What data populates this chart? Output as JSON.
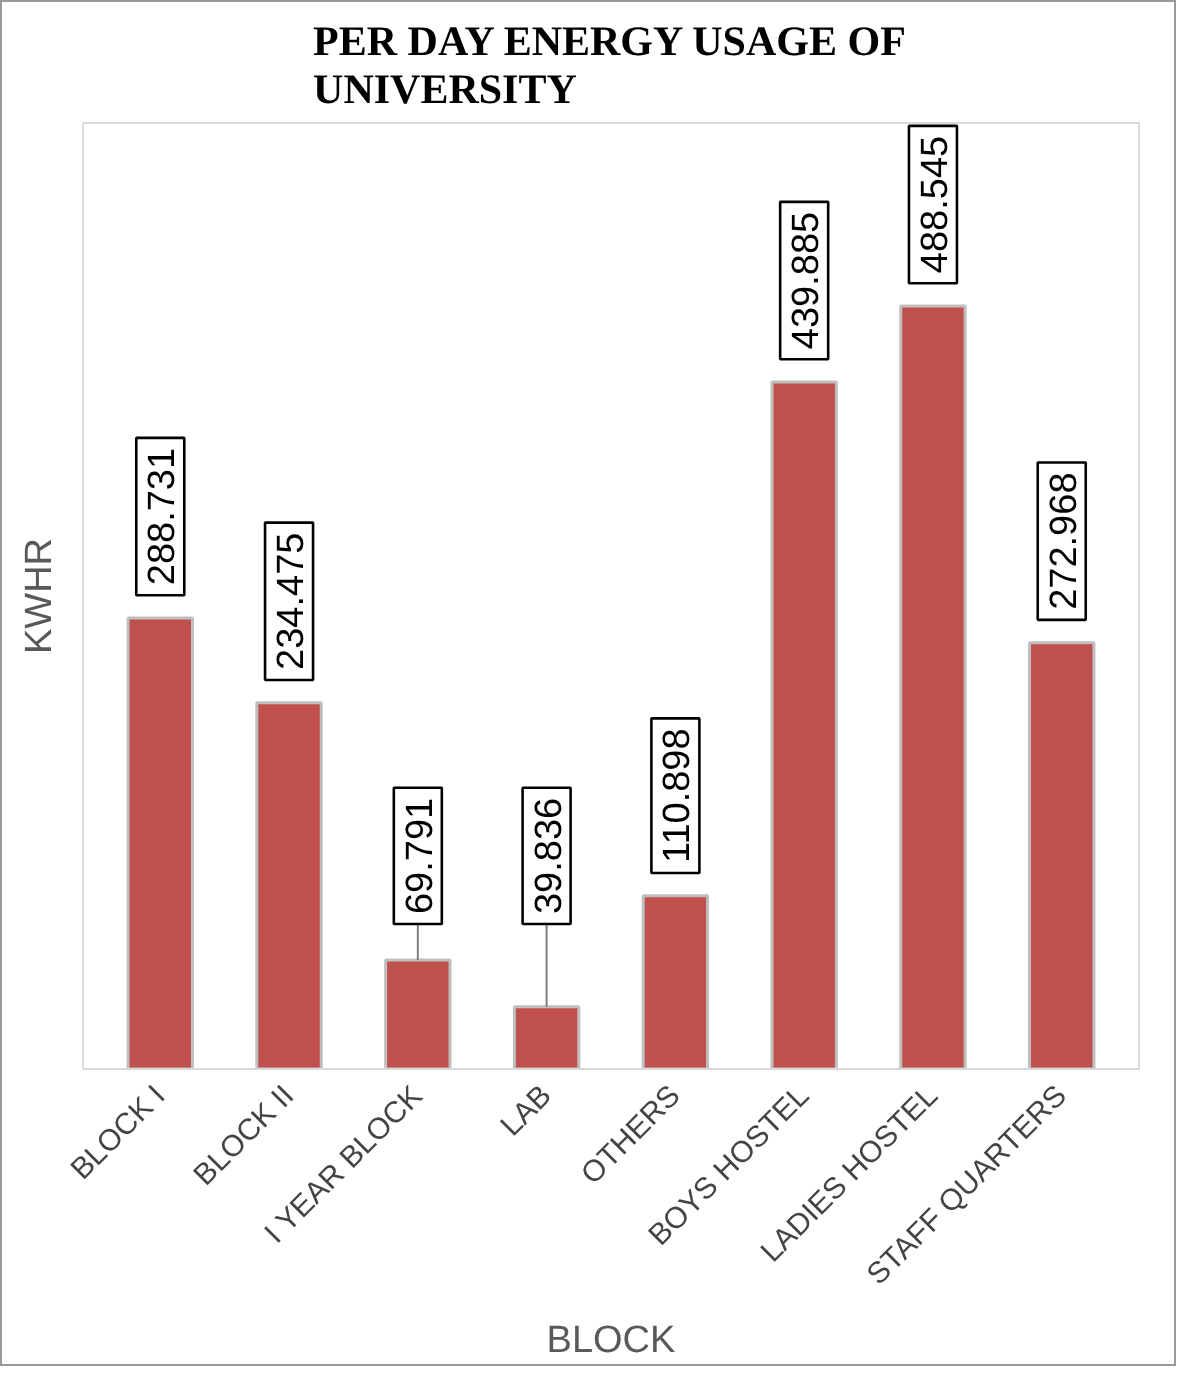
{
  "chart_data": {
    "type": "bar",
    "title": "PER DAY ENERGY USAGE OF UNIVERSITY",
    "xlabel": "BLOCK",
    "ylabel": "KWHR",
    "categories": [
      "BLOCK I",
      "BLOCK II",
      "I YEAR BLOCK",
      "LAB",
      "OTHERS",
      "BOYS HOSTEL",
      "LADIES HOSTEL",
      "STAFF QUARTERS"
    ],
    "values": [
      288.731,
      234.475,
      69.791,
      39.836,
      110.898,
      439.885,
      488.545,
      272.968
    ],
    "color": "#c0504d",
    "data_labels": true,
    "grid": false
  }
}
